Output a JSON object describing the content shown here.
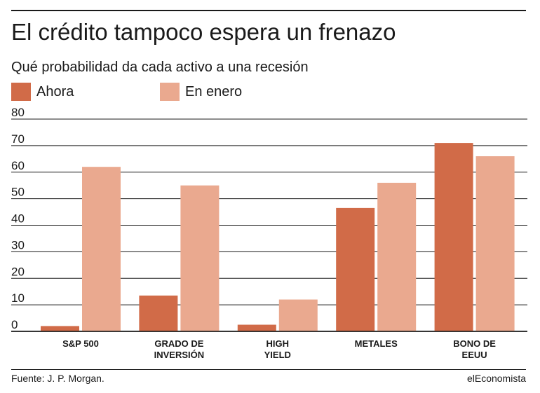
{
  "header": {
    "title": "El crédito tampoco espera un frenazo",
    "subtitle": "Qué probabilidad da cada activo a una recesión"
  },
  "footer": {
    "source": "Fuente: J. P. Morgan.",
    "brand": "elEconomista"
  },
  "colors": {
    "ahora": "#d16b48",
    "enero": "#eaa98f",
    "axis": "#1a1a1a",
    "grid": "#1a1a1a"
  },
  "chart_data": {
    "type": "bar",
    "categories": [
      [
        "S&P 500"
      ],
      [
        "GRADO DE",
        "INVERSIÓN"
      ],
      [
        "HIGH",
        "YIELD"
      ],
      [
        "METALES"
      ],
      [
        "BONO DE",
        "EEUU"
      ]
    ],
    "series": [
      {
        "name": "Ahora",
        "values": [
          2,
          13.5,
          2.5,
          46.5,
          71
        ]
      },
      {
        "name": "En enero",
        "values": [
          62,
          55,
          12,
          56,
          66
        ]
      }
    ],
    "yticks": [
      "0",
      "10",
      "20",
      "30",
      "40",
      "50",
      "60",
      "70",
      "80"
    ],
    "ylim": [
      0,
      80
    ],
    "grid": true,
    "legend_position": "top-left"
  }
}
